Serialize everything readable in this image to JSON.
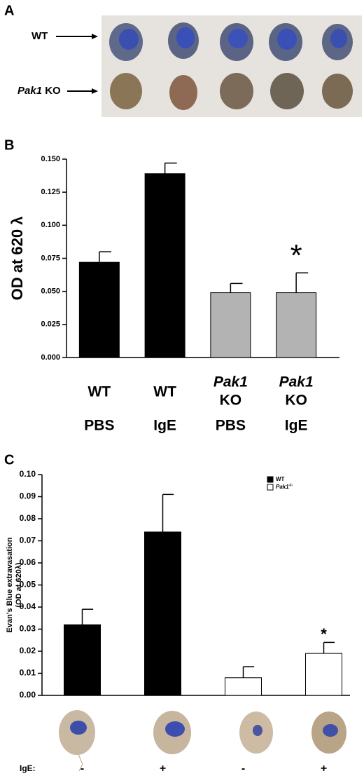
{
  "panel_letters": [
    "A",
    "B",
    "C"
  ],
  "panel_a": {
    "row_labels": [
      {
        "parts": [
          "WT"
        ]
      },
      {
        "parts": [
          "Pak1",
          " KO"
        ]
      }
    ]
  },
  "chart_data": [
    {
      "type": "bar",
      "ylabel": "OD at 620 λ",
      "categories": [
        [
          "WT",
          "PBS"
        ],
        [
          "WT",
          "IgE"
        ],
        [
          "Pak1",
          "KO",
          "PBS"
        ],
        [
          "Pak1",
          "KO",
          "IgE"
        ]
      ],
      "values": [
        0.072,
        0.139,
        0.049,
        0.049
      ],
      "errors": [
        0.008,
        0.008,
        0.007,
        0.015
      ],
      "colors": [
        "#000000",
        "#000000",
        "#b3b3b3",
        "#b3b3b3"
      ],
      "ylim": [
        0,
        0.15
      ],
      "yticks": [
        {
          "value": 0,
          "label": "0.000"
        },
        {
          "value": 0.025,
          "label": "0.025"
        },
        {
          "value": 0.05,
          "label": "0.050"
        },
        {
          "value": 0.075,
          "label": "0.075"
        },
        {
          "value": 0.1,
          "label": "0.100"
        },
        {
          "value": 0.125,
          "label": "0.125"
        },
        {
          "value": 0.15,
          "label": "0.150"
        }
      ],
      "annotations": [
        {
          "text": "*",
          "bar": 3
        }
      ]
    },
    {
      "type": "bar",
      "ylabel": [
        "Evan's Blue extravasation",
        "(OD at 620λ)"
      ],
      "xlabel": "IgE:",
      "categories": [
        "-",
        "+",
        "-",
        "+"
      ],
      "series": [
        {
          "name": "WT",
          "color": "#000000",
          "values": [
            0.032,
            0.074,
            null,
            null
          ],
          "errors": [
            0.007,
            0.017,
            null,
            null
          ]
        },
        {
          "name": "Pak1",
          "name_superscript": "-/-",
          "color": "#ffffff",
          "values": [
            null,
            null,
            0.008,
            0.019
          ],
          "errors": [
            null,
            null,
            0.005,
            0.005
          ]
        }
      ],
      "ylim": [
        0,
        0.1
      ],
      "yticks": [
        {
          "value": 0,
          "label": "0.00"
        },
        {
          "value": 0.01,
          "label": "0.01"
        },
        {
          "value": 0.02,
          "label": "0.02"
        },
        {
          "value": 0.03,
          "label": "0.03"
        },
        {
          "value": 0.04,
          "label": "0.04"
        },
        {
          "value": 0.05,
          "label": "0.05"
        },
        {
          "value": 0.06,
          "label": "0.06"
        },
        {
          "value": 0.07,
          "label": "0.07"
        },
        {
          "value": 0.08,
          "label": "0.08"
        },
        {
          "value": 0.09,
          "label": "0.09"
        },
        {
          "value": 0.1,
          "label": "0.10"
        }
      ],
      "annotations": [
        {
          "text": "*",
          "bar": 3
        }
      ]
    }
  ]
}
